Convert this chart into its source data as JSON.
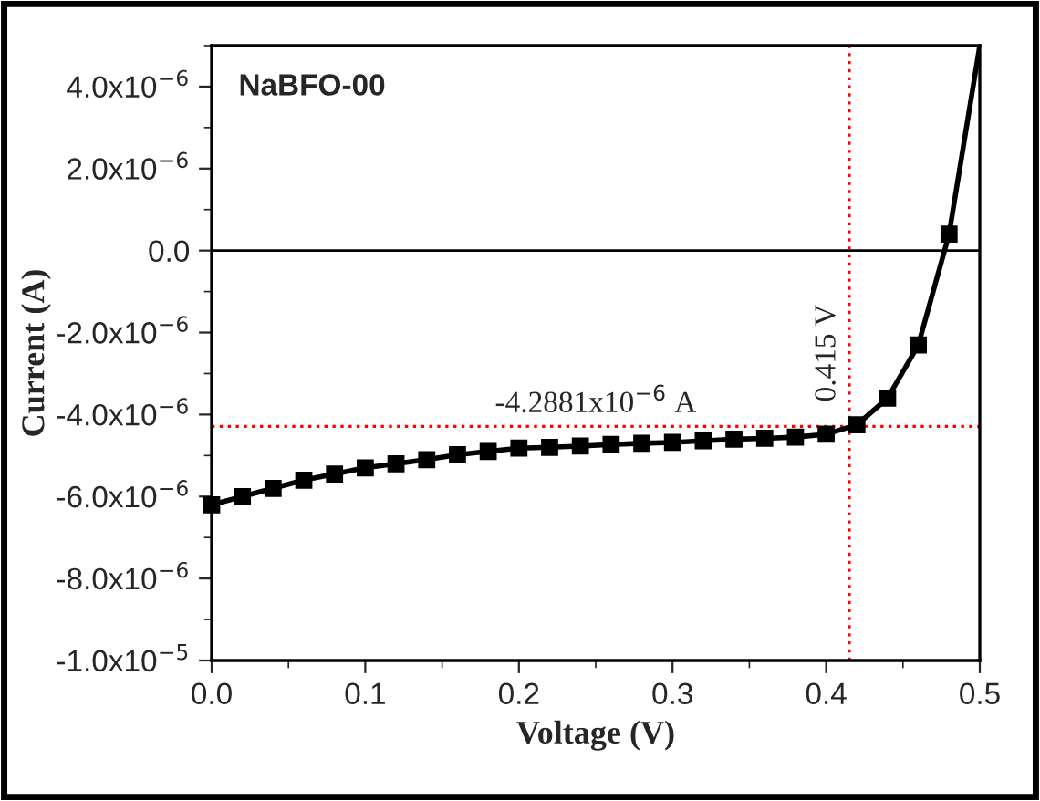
{
  "chart_data": {
    "type": "line",
    "title": "NaBFO-00",
    "xlabel": "Voltage (V)",
    "ylabel": "Current (A)",
    "x": [
      0,
      0.02,
      0.04,
      0.06,
      0.08,
      0.1,
      0.12,
      0.14,
      0.16,
      0.18,
      0.2,
      0.22,
      0.24,
      0.26,
      0.28,
      0.3,
      0.32,
      0.34,
      0.36,
      0.38,
      0.4,
      0.42,
      0.44,
      0.46,
      0.48
    ],
    "series": [
      {
        "color": "#000000",
        "marker": "square",
        "values": [
          -6.2e-06,
          -6e-06,
          -5.8e-06,
          -5.6e-06,
          -5.45e-06,
          -5.3e-06,
          -5.2e-06,
          -5.1e-06,
          -4.98e-06,
          -4.9e-06,
          -4.82e-06,
          -4.8e-06,
          -4.77e-06,
          -4.73e-06,
          -4.7e-06,
          -4.68e-06,
          -4.64e-06,
          -4.6e-06,
          -4.58e-06,
          -4.55e-06,
          -4.48e-06,
          -4.25e-06,
          -3.6e-06,
          -2.3e-06,
          4e-07
        ]
      },
      {
        "color": "#000000",
        "marker": "none",
        "x": [
          0.48,
          0.5
        ],
        "values": [
          4e-07,
          5e-06
        ]
      }
    ],
    "xlim": [
      0,
      0.5
    ],
    "xticks": [
      {
        "value": 0,
        "label": "0.0"
      },
      0.1,
      0.2,
      0.3,
      0.4,
      0.5
    ],
    "ylim": [
      -1e-05,
      5e-06
    ],
    "yticks": [
      {
        "value": -1e-05,
        "label": "-1.0x10$^{−5}$"
      },
      {
        "value": -8e-06,
        "label": "-8.0x10$^{−6}$"
      },
      {
        "value": -6e-06,
        "label": "-6.0x10$^{−6}$"
      },
      {
        "value": -4e-06,
        "label": "-4.0x10$^{−6}$"
      },
      {
        "value": -2e-06,
        "label": "-2.0x10$^{−6}$"
      },
      {
        "value": 0,
        "label": "0.0"
      },
      {
        "value": 2e-06,
        "label": "2.0x10$^{−6}$"
      },
      {
        "value": 4e-06,
        "label": "4.0x10$^{−6}$"
      }
    ],
    "ref_lines": [
      {
        "axis": "y",
        "value": 0,
        "color": "#000000",
        "line_style": "solid"
      },
      {
        "axis": "x",
        "value": 0.415,
        "label": "0.415 V",
        "color": "#ff0000",
        "line_style": "dotted"
      },
      {
        "axis": "y",
        "value": -4.2881e-06,
        "label": "-4.2881x10$^{−6}$ A",
        "color": "#ff0000",
        "line_style": "dotted"
      }
    ],
    "grid": false,
    "legend": false,
    "line_style": "solid"
  }
}
